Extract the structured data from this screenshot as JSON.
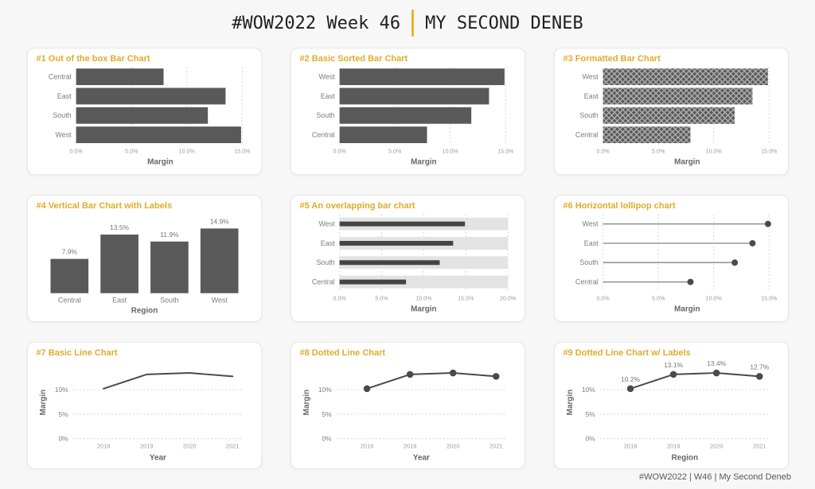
{
  "header": {
    "title_left": "#WOW2022 Week 46",
    "title_right": "MY SECOND DENEB"
  },
  "footer": {
    "text": "#WOW2022 | W46 | My Second Deneb"
  },
  "colors": {
    "accent_gold": "#DFAC2B",
    "divider_gold": "#E7B52E",
    "bar_fill": "#595959",
    "overlap_bar_fill": "#454545",
    "background_bar_fill": "#E3E3E3",
    "line_stroke": "#4A4A4A",
    "point_fill": "#4A4A4A",
    "lollipop_stick": "#8F8F8F",
    "grid_line": "#CBCBCB",
    "axis_tick_text": "#9B9B9B",
    "category_text": "#7C7C7C",
    "axis_title_text": "#666666",
    "data_label_text": "#757575",
    "page_bg": "#F7F7F7",
    "card_bg": "#FFFFFF",
    "card_border": "#E7E7E7",
    "footer_text": "#585858",
    "header_text": "#202020",
    "hatch_line": "#B5B5B5"
  },
  "chart_data": [
    {
      "type": "bar",
      "orientation": "horizontal",
      "bar_style": "solid",
      "title": "#1 Out of the box Bar Chart",
      "categories": [
        "Central",
        "East",
        "South",
        "West"
      ],
      "values": [
        7.9,
        13.5,
        11.9,
        14.9
      ],
      "xlabel": "Margin",
      "xlim": [
        0,
        15.2
      ],
      "x_ticks": [
        0,
        5,
        10,
        15
      ],
      "x_tick_labels": [
        "0.0%",
        "5.0%",
        "10.0%",
        "15.0%"
      ],
      "grid_all_ticks": false
    },
    {
      "type": "bar",
      "orientation": "horizontal",
      "bar_style": "solid",
      "title": "#2 Basic Sorted Bar Chart",
      "categories": [
        "West",
        "East",
        "South",
        "Central"
      ],
      "values": [
        14.9,
        13.5,
        11.9,
        7.9
      ],
      "xlabel": "Margin",
      "xlim": [
        0,
        15.2
      ],
      "x_ticks": [
        0,
        5,
        10,
        15
      ],
      "x_tick_labels": [
        "0.0%",
        "5.0%",
        "10.0%",
        "15.0%"
      ],
      "grid_all_ticks": false
    },
    {
      "type": "bar",
      "orientation": "horizontal",
      "bar_style": "crosshatch",
      "title": "#3 Formatted Bar Chart",
      "categories": [
        "West",
        "East",
        "South",
        "Central"
      ],
      "values": [
        14.9,
        13.5,
        11.9,
        7.9
      ],
      "xlabel": "Margin",
      "xlim": [
        0,
        15.2
      ],
      "x_ticks": [
        0,
        5,
        10,
        15
      ],
      "x_tick_labels": [
        "0.0%",
        "5.0%",
        "10.0%",
        "15.0%"
      ],
      "grid_all_ticks": false
    },
    {
      "type": "bar",
      "orientation": "vertical",
      "bar_style": "solid",
      "title": "#4 Vertical Bar Chart with Labels",
      "categories": [
        "Central",
        "East",
        "South",
        "West"
      ],
      "values": [
        7.9,
        13.5,
        11.9,
        14.9
      ],
      "data_labels": [
        "7.9%",
        "13.5%",
        "11.9%",
        "14.9%"
      ],
      "xlabel": "Region",
      "ylim": [
        0,
        16
      ]
    },
    {
      "type": "bar",
      "orientation": "horizontal",
      "bar_style": "overlap",
      "title": "#5 An overlapping bar chart",
      "categories": [
        "West",
        "East",
        "South",
        "Central"
      ],
      "values": [
        14.9,
        13.5,
        11.9,
        7.9
      ],
      "background_value": 20,
      "xlabel": "Margin",
      "xlim": [
        0,
        20
      ],
      "x_ticks": [
        0,
        5,
        10,
        15,
        20
      ],
      "x_tick_labels": [
        "0.0%",
        "5.0%",
        "10.0%",
        "15.0%",
        "20.0%"
      ],
      "grid_all_ticks": true
    },
    {
      "type": "lollipop",
      "title": "#6 Horizontal lollipop chart",
      "categories": [
        "West",
        "East",
        "South",
        "Central"
      ],
      "values": [
        14.9,
        13.5,
        11.9,
        7.9
      ],
      "xlabel": "Margin",
      "xlim": [
        0,
        15.2
      ],
      "x_ticks": [
        0,
        5,
        10,
        15
      ],
      "x_tick_labels": [
        "0.0%",
        "5.0%",
        "10.0%",
        "15.0%"
      ],
      "grid_all_ticks": true
    },
    {
      "type": "line",
      "points": false,
      "title": "#7 Basic Line Chart",
      "x": [
        "2018",
        "2019",
        "2020",
        "2021"
      ],
      "values": [
        10.2,
        13.1,
        13.4,
        12.7
      ],
      "ylabel": "Margin",
      "xlabel": "Year",
      "ylim": [
        0,
        14.8
      ],
      "y_ticks": [
        0,
        5,
        10
      ],
      "y_tick_labels": [
        "0%",
        "5%",
        "10%"
      ]
    },
    {
      "type": "line",
      "points": true,
      "title": "#8 Dotted Line Chart",
      "x": [
        "2018",
        "2019",
        "2020",
        "2021"
      ],
      "values": [
        10.2,
        13.1,
        13.4,
        12.7
      ],
      "ylabel": "Margin",
      "xlabel": "Year",
      "ylim": [
        0,
        14.8
      ],
      "y_ticks": [
        0,
        5,
        10
      ],
      "y_tick_labels": [
        "0%",
        "5%",
        "10%"
      ]
    },
    {
      "type": "line",
      "points": true,
      "title": "#9 Dotted Line Chart w/ Labels",
      "x": [
        "2018",
        "2019",
        "2020",
        "2021"
      ],
      "values": [
        10.2,
        13.1,
        13.4,
        12.7
      ],
      "data_labels": [
        "10.2%",
        "13.1%",
        "13.4%",
        "12.7%"
      ],
      "ylabel": "Margin",
      "xlabel": "Region",
      "ylim": [
        0,
        14.8
      ],
      "y_ticks": [
        0,
        5,
        10
      ],
      "y_tick_labels": [
        "0%",
        "5%",
        "10%"
      ]
    }
  ]
}
